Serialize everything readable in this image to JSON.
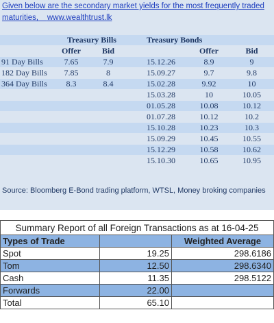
{
  "intro": {
    "text": "Given below are the secondary market yields for the most frequently traded maturities,",
    "link": "www.wealthtrust.lk"
  },
  "yields": {
    "bills_title": "Treasury Bills",
    "bonds_title": "Treasury Bonds",
    "columns": [
      "Offer",
      "Bid",
      "Offer",
      "Bid"
    ],
    "bills": [
      [
        "91 Day Bills",
        "7.65",
        "7.9"
      ],
      [
        "182 Day Bills",
        "7.85",
        "8"
      ],
      [
        "364 Day Bills",
        "8.3",
        "8.4"
      ]
    ],
    "bonds": [
      [
        "15.12.26",
        "8.9",
        "9"
      ],
      [
        "15.09.27",
        "9.7",
        "9.8"
      ],
      [
        "15.02.28",
        "9.92",
        "10"
      ],
      [
        "15.03.28",
        "10",
        "10.05"
      ],
      [
        "01.05.28",
        "10.08",
        "10.12"
      ],
      [
        "01.07.28",
        "10.12",
        "10.2"
      ],
      [
        "15.10.28",
        "10.23",
        "10.3"
      ],
      [
        "15.09.29",
        "10.45",
        "10.55"
      ],
      [
        "15.12.29",
        "10.58",
        "10.62"
      ],
      [
        "15.10.30",
        "10.65",
        "10.95"
      ]
    ]
  },
  "source": "Source: Bloomberg E-Bond trading platform, WTSL, Money broking companies",
  "summary": {
    "title": "Summary Report of all Foreign Transactions as at 16-04-25",
    "headers": [
      "Types of Trade",
      "Weighted Average"
    ],
    "rows": [
      [
        "Spot",
        "19.25",
        "298.6186"
      ],
      [
        "Tom",
        "12.50",
        "298.6340"
      ],
      [
        "Cash",
        "11.35",
        "298.5122"
      ],
      [
        "Forwards",
        "22.00"
      ],
      [
        "Total",
        "65.10"
      ]
    ]
  }
}
